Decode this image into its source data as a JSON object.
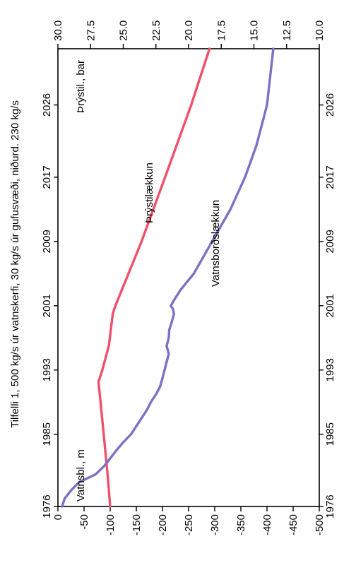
{
  "chart_data": {
    "type": "line",
    "title": "Tilfelli 1, 500 kg/s úr vatnskerfi, 30 kg/s úr gufusvæði, niðurd. 230 kg/s",
    "x_axis": {
      "ticks": [
        1976,
        1985,
        1993,
        2001,
        2009,
        2017,
        2026
      ],
      "range": [
        1976,
        2033
      ]
    },
    "y_left": {
      "label": "Vatnsbl., m",
      "ticks": [
        0,
        -50,
        -100,
        -150,
        -200,
        -250,
        -300,
        -350,
        -400,
        -450,
        -500
      ],
      "range": [
        0,
        -500
      ]
    },
    "y_right": {
      "label": "Þrýstil., bar",
      "ticks": [
        "30.0",
        "27.5",
        "25.0",
        "22.5",
        "20.0",
        "17.5",
        "15.0",
        "12.5",
        "10.0"
      ],
      "range": [
        30,
        10
      ]
    },
    "series": [
      {
        "name": "Þrýstilækkun",
        "axis": "right",
        "color": "#f0506a",
        "x": [
          1976,
          1980,
          1985,
          1990,
          1991.5,
          1993,
          1996,
          2000,
          2001,
          2005,
          2009,
          2017,
          2026,
          2033
        ],
        "y": [
          26.0,
          26.2,
          26.5,
          26.8,
          26.9,
          26.6,
          26.1,
          25.8,
          25.6,
          24.6,
          23.6,
          21.8,
          19.8,
          18.4
        ]
      },
      {
        "name": "Vatnsborðslækkun",
        "axis": "left",
        "color": "#7a72c4",
        "x": [
          1976,
          1977,
          1978,
          1979,
          1980,
          1981,
          1982,
          1983,
          1984,
          1985,
          1986,
          1987,
          1988,
          1989,
          1990,
          1991,
          1992,
          1993,
          1994,
          1995,
          1996,
          1997,
          1998,
          1999,
          2000,
          2000.6,
          2001,
          2002,
          2003,
          2005,
          2009,
          2013,
          2017,
          2021,
          2026,
          2033
        ],
        "y": [
          -8,
          -13,
          -25,
          -40,
          -72,
          -88,
          -100,
          -112,
          -125,
          -140,
          -150,
          -160,
          -170,
          -178,
          -188,
          -196,
          -200,
          -204,
          -208,
          -212,
          -208,
          -212,
          -213,
          -218,
          -222,
          -220,
          -216,
          -225,
          -235,
          -260,
          -295,
          -330,
          -358,
          -380,
          -400,
          -412
        ]
      }
    ],
    "annotations": [
      {
        "text": "Vatnsbl., m"
      },
      {
        "text": "Þrýstil., bar"
      },
      {
        "text": "Þrýstilækkun"
      },
      {
        "text": "Vatnsborðslækkun"
      }
    ]
  }
}
